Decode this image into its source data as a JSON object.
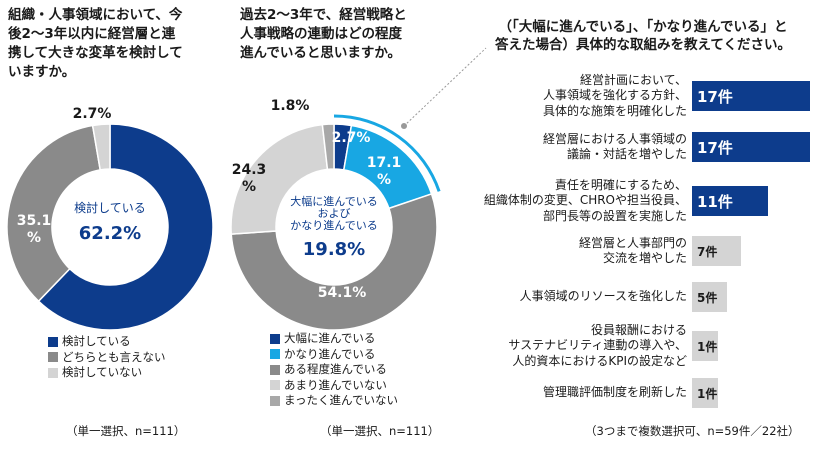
{
  "questions": {
    "q1_lines": [
      "組織・人事領域において、今",
      "後2〜3年以内に経営層と連",
      "携して大きな変革を検討して",
      "いますか。"
    ],
    "q2_lines": [
      "過去2〜3年で、経営戦略と",
      "人事戦略の連動はどの程度",
      "進んでいると思いますか。"
    ],
    "q3_lines": [
      "（「大幅に進んでいる」、「かなり進んでいる」と",
      "答えた場合）具体的な取組みを教えてください。"
    ]
  },
  "colors": {
    "dark_blue": "#0d3c8c",
    "light_blue": "#18a7e3",
    "dark_gray": "#8a8a8a",
    "mid_gray": "#a8a8a8",
    "light_gray": "#d4d4d4"
  },
  "chart_data": [
    {
      "type": "pie",
      "variant": "donut",
      "categories": [
        "検討している",
        "どちらとも言えない",
        "検討していない"
      ],
      "values": [
        62.2,
        35.1,
        2.7
      ],
      "labels": [
        "",
        "35.1\n%",
        "2.7%"
      ],
      "center_label": "検討している",
      "center_value": "62.2%",
      "colors": [
        "#0d3c8c",
        "#8a8a8a",
        "#d4d4d4"
      ],
      "legend": [
        "検討している",
        "どちらとも言えない",
        "検討していない"
      ],
      "note": "（単一選択、n=111）"
    },
    {
      "type": "pie",
      "variant": "donut",
      "categories": [
        "大幅に進んでいる",
        "かなり進んでいる",
        "ある程度進んでいる",
        "あまり進んでいない",
        "まったく進んでいない"
      ],
      "values": [
        2.7,
        17.1,
        54.1,
        24.3,
        1.8
      ],
      "labels": [
        "2.7%",
        "17.1\n%",
        "54.1%",
        "24.3\n%",
        "1.8%"
      ],
      "center_label": "大幅に進んでいる\nおよび\nかなり進んでいる",
      "center_value": "19.8%",
      "colors": [
        "#0d3c8c",
        "#18a7e3",
        "#8a8a8a",
        "#d4d4d4",
        "#a8a8a8"
      ],
      "legend": [
        "大幅に進んでいる",
        "かなり進んでいる",
        "ある程度進んでいる",
        "あまり進んでいない",
        "まったく進んでいない"
      ],
      "note": "（単一選択、n=111）"
    },
    {
      "type": "bar",
      "orientation": "horizontal",
      "unit": "件",
      "categories": [
        "経営計画において、\n人事領域を強化する方針、\n具体的な施策を明確化した",
        "経営層における人事領域の\n議論・対話を増やした",
        "責任を明確にするため、\n組織体制の変更、CHROや担当役員、\n部門長等の設置を実施した",
        "経営層と人事部門の\n交流を増やした",
        "人事領域のリソースを強化した",
        "役員報酬における\nサステナビリティ連動の導入や、\n人的資本におけるKPIの設定など",
        "管理職評価制度を刷新した"
      ],
      "values": [
        17,
        17,
        11,
        7,
        5,
        1,
        1
      ],
      "value_labels": [
        "17件",
        "17件",
        "11件",
        "7件",
        "5件",
        "1件",
        "1件"
      ],
      "note": "（3つまで複数選択可、n=59件／22社）"
    }
  ]
}
